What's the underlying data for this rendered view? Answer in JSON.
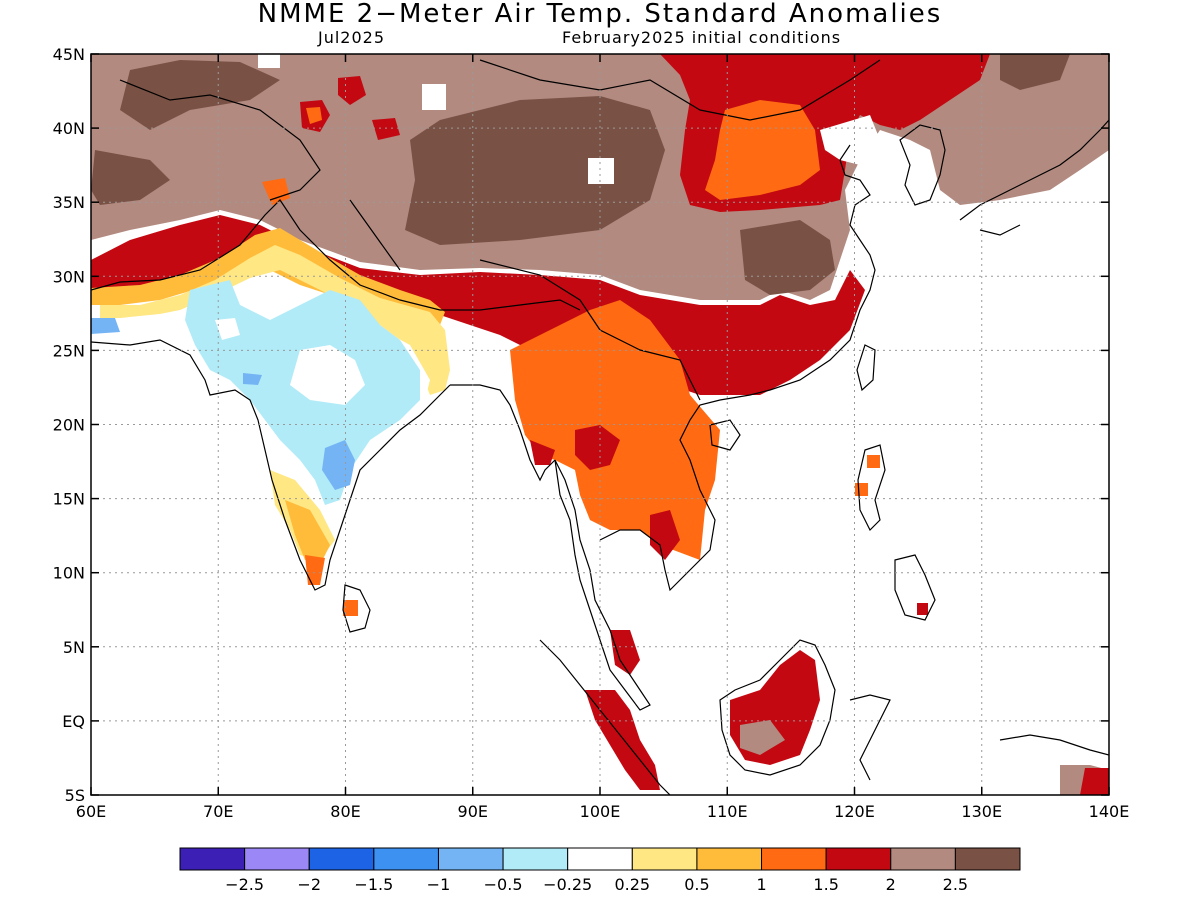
{
  "title": "NMME 2−Meter Air Temp. Standard Anomalies",
  "target_month": "Jul2025",
  "initial_conditions": "February2025 initial conditions",
  "map": {
    "lon_range": [
      60,
      140
    ],
    "lat_range": [
      -5,
      45
    ],
    "lon_ticks": [
      "60E",
      "70E",
      "80E",
      "90E",
      "100E",
      "110E",
      "120E",
      "130E",
      "140E"
    ],
    "lat_ticks": [
      "45N",
      "40N",
      "35N",
      "30N",
      "25N",
      "20N",
      "15N",
      "10N",
      "5N",
      "EQ",
      "5S"
    ],
    "grid": "dotted",
    "coastlines": true,
    "country_borders": true
  },
  "legend": {
    "colors": [
      "#3c1fb5",
      "#9b87f5",
      "#1c63e6",
      "#3d91f0",
      "#74b4f4",
      "#b0ebf7",
      "#ffffff",
      "#ffe784",
      "#ffbb3a",
      "#ff6a12",
      "#c40811",
      "#b28a80",
      "#7a5245"
    ],
    "labels": [
      "−2.5",
      "−2",
      "−1.5",
      "−1",
      "−0.5",
      "−0.25",
      "0.25",
      "0.5",
      "1",
      "1.5",
      "2",
      "2.5"
    ]
  }
}
